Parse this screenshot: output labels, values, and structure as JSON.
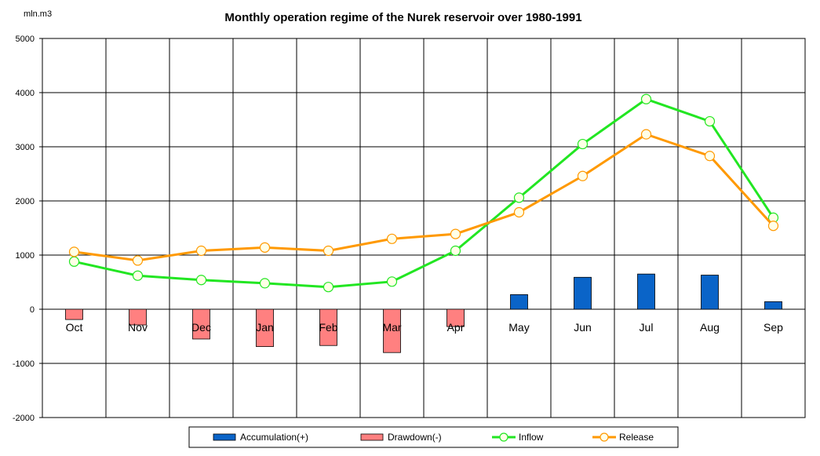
{
  "chart_data": {
    "type": "bar",
    "title": "Monthly operation regime of the Nurek reservoir over 1980-1991",
    "unit_label": "mln.m3",
    "categories": [
      "Oct",
      "Nov",
      "Dec",
      "Jan",
      "Feb",
      "Mar",
      "Apr",
      "May",
      "Jun",
      "Jul",
      "Aug",
      "Sep"
    ],
    "ylim": [
      -2000,
      5000
    ],
    "yticks": [
      -2000,
      -1000,
      0,
      1000,
      2000,
      3000,
      4000,
      5000
    ],
    "grid": true,
    "legend_position": "bottom",
    "series": [
      {
        "name": "Accumulation(+)",
        "type": "bar",
        "color": "#0a64c8",
        "values": [
          0,
          0,
          0,
          0,
          0,
          0,
          0,
          270,
          590,
          650,
          630,
          140
        ]
      },
      {
        "name": "Drawdown(-)",
        "type": "bar",
        "color": "#ff8080",
        "values": [
          -190,
          -290,
          -550,
          -690,
          -670,
          -800,
          -320,
          0,
          0,
          0,
          0,
          0
        ]
      },
      {
        "name": "Inflow",
        "type": "line",
        "color": "#22e622",
        "values": [
          880,
          620,
          540,
          480,
          410,
          510,
          1080,
          2060,
          3050,
          3880,
          3470,
          1690
        ]
      },
      {
        "name": "Release",
        "type": "line",
        "color": "#ff9900",
        "values": [
          1060,
          900,
          1080,
          1140,
          1080,
          1300,
          1390,
          1790,
          2460,
          3230,
          2830,
          1540
        ]
      }
    ]
  }
}
